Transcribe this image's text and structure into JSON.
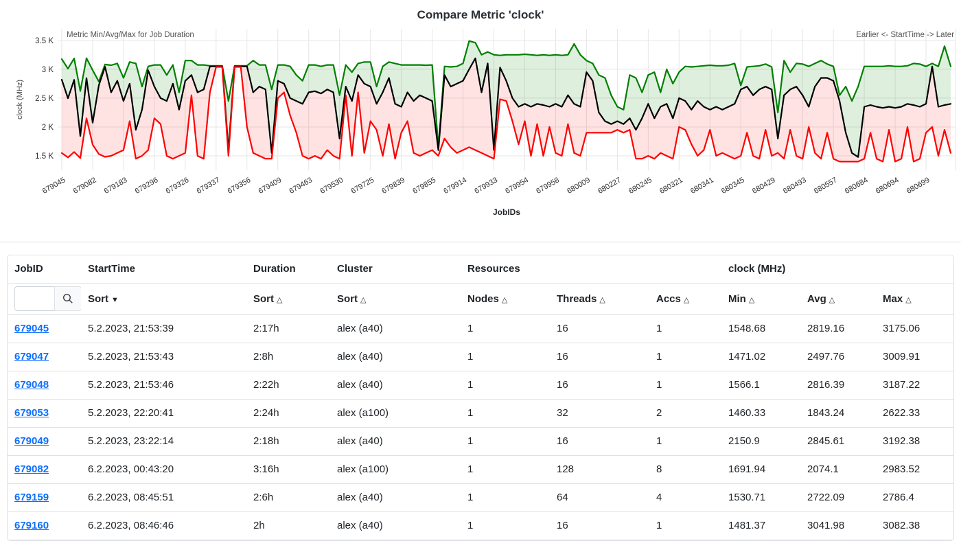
{
  "chart_data": {
    "type": "area",
    "title": "Compare Metric 'clock'",
    "annotations": {
      "top_left": "Metric Min/Avg/Max for Job Duration",
      "top_right": "Earlier <- StartTime -> Later"
    },
    "xlabel": "JobIDs",
    "ylabel": "clock (MHz)",
    "grid": true,
    "legend": "none",
    "ylim": [
      1250,
      3700
    ],
    "yticks": [
      {
        "value": 1500,
        "label": "1.5 K"
      },
      {
        "value": 2000,
        "label": "2 K"
      },
      {
        "value": 2500,
        "label": "2.5 K"
      },
      {
        "value": 3000,
        "label": "3 K"
      },
      {
        "value": 3500,
        "label": "3.5 K"
      }
    ],
    "tick_every": 5,
    "x_tick_labels": [
      "679045",
      "679082",
      "679183",
      "679296",
      "679326",
      "679337",
      "679356",
      "679409",
      "679463",
      "679530",
      "679725",
      "679839",
      "679855",
      "679914",
      "679933",
      "679954",
      "679958",
      "680009",
      "680227",
      "680245",
      "680321",
      "680341",
      "680345",
      "680429",
      "680493",
      "680557",
      "680684",
      "680694",
      "680699"
    ],
    "series": [
      {
        "name": "max",
        "color": "#008000",
        "fill_color": "rgba(0,128,0,0.13)",
        "values": [
          3175.06,
          3009.91,
          3187.22,
          2622.33,
          3192.38,
          2983.52,
          2786.4,
          3082.38,
          3070,
          3100,
          2850,
          3125,
          3100,
          2700,
          3050,
          3075,
          3075,
          2900,
          3075,
          2600,
          3150,
          3150,
          3075,
          3075,
          3060,
          3060,
          3060,
          2450,
          3060,
          3060,
          3060,
          3150,
          3075,
          3075,
          2650,
          3075,
          3075,
          3050,
          2900,
          2800,
          3075,
          3075,
          3050,
          3075,
          3075,
          2550,
          3075,
          2950,
          3100,
          3125,
          3125,
          2700,
          3050,
          3125,
          3100,
          3075,
          3075,
          3075,
          3075,
          3070,
          3075,
          1650,
          3050,
          3040,
          3050,
          3100,
          3490,
          3460,
          3250,
          3300,
          3250,
          3240,
          3250,
          3250,
          3250,
          3260,
          3250,
          3240,
          3250,
          3240,
          3250,
          3240,
          3250,
          3440,
          3250,
          3150,
          3100,
          2900,
          2850,
          2550,
          2350,
          2300,
          2900,
          2850,
          2600,
          2900,
          2950,
          2600,
          3000,
          2750,
          2950,
          3050,
          3040,
          3050,
          3060,
          3070,
          3060,
          3060,
          3070,
          3100,
          2720,
          3040,
          3050,
          3060,
          3090,
          3040,
          2250,
          3150,
          2950,
          3100,
          3090,
          3050,
          3100,
          3150,
          3090,
          3050,
          2550,
          2700,
          2450,
          2700,
          3050,
          3050,
          3050,
          3050,
          3060,
          3050,
          3050,
          3060,
          3100,
          3090,
          3050,
          3100,
          3050,
          3400,
          3050
        ]
      },
      {
        "name": "avg",
        "color": "#000000",
        "values": [
          2819.16,
          2497.76,
          2816.39,
          1843.24,
          2845.61,
          2074.1,
          2722.09,
          3041.98,
          2600,
          2800,
          2450,
          2750,
          1950,
          2300,
          2980,
          2700,
          2500,
          2450,
          2750,
          2300,
          2800,
          2900,
          2600,
          2650,
          3050,
          3050,
          3050,
          1600,
          3050,
          3050,
          3050,
          2600,
          2700,
          2650,
          1550,
          2800,
          2750,
          2500,
          2450,
          2400,
          2600,
          2620,
          2580,
          2650,
          2600,
          1800,
          2700,
          2450,
          2900,
          2750,
          2700,
          2400,
          2600,
          2850,
          2400,
          2350,
          2600,
          2450,
          2550,
          2500,
          2450,
          1600,
          2900,
          2700,
          2750,
          2800,
          3000,
          3190,
          2600,
          3100,
          1600,
          3030,
          2800,
          2500,
          2350,
          2400,
          2350,
          2400,
          2380,
          2350,
          2400,
          2350,
          2550,
          2400,
          2350,
          2950,
          2800,
          2250,
          2100,
          2050,
          2100,
          2050,
          2150,
          1950,
          2150,
          2400,
          2150,
          2350,
          2400,
          2150,
          2500,
          2450,
          2300,
          2450,
          2350,
          2300,
          2350,
          2300,
          2350,
          2400,
          2650,
          2700,
          2550,
          2650,
          2700,
          2650,
          1800,
          2550,
          2650,
          2700,
          2550,
          2350,
          2700,
          2850,
          2850,
          2800,
          2450,
          1900,
          1550,
          1480,
          2350,
          2380,
          2350,
          2330,
          2350,
          2330,
          2350,
          2400,
          2380,
          2350,
          2400,
          3050,
          2350,
          2380,
          2400
        ]
      },
      {
        "name": "min",
        "color": "#ff0000",
        "fill_color": "rgba(255,0,0,0.11)",
        "values": [
          1548.68,
          1471.02,
          1566.1,
          1460.33,
          2150.9,
          1691.94,
          1530.71,
          1481.37,
          1500,
          1550,
          1600,
          2100,
          1450,
          1500,
          1600,
          2150,
          2050,
          1500,
          1450,
          1500,
          1550,
          2550,
          1500,
          1450,
          2600,
          3040,
          3040,
          1500,
          3040,
          3040,
          2000,
          1550,
          1500,
          1450,
          1450,
          2500,
          2600,
          2200,
          1900,
          1500,
          1450,
          1500,
          1450,
          1600,
          1500,
          1450,
          2550,
          1500,
          2600,
          1550,
          2100,
          1950,
          1500,
          2050,
          1450,
          1900,
          2100,
          1550,
          1500,
          1550,
          1600,
          1500,
          1800,
          1650,
          1550,
          1600,
          1650,
          1600,
          1550,
          1500,
          1450,
          2480,
          2450,
          2100,
          1700,
          2100,
          1500,
          2050,
          1500,
          2000,
          1550,
          1500,
          2050,
          1550,
          1500,
          1900,
          1900,
          1900,
          1900,
          1900,
          1950,
          1900,
          1950,
          1450,
          1450,
          1500,
          1450,
          1550,
          1500,
          1450,
          2000,
          1950,
          1700,
          1500,
          1600,
          1950,
          1500,
          1550,
          1500,
          1450,
          1500,
          1900,
          1500,
          1450,
          1950,
          1500,
          1550,
          1450,
          1950,
          1500,
          1450,
          2000,
          1550,
          1450,
          1900,
          1450,
          1400,
          1400,
          1400,
          1400,
          1450,
          1900,
          1450,
          1400,
          1950,
          1400,
          1450,
          2000,
          1400,
          1450,
          1900,
          2000,
          1500,
          1950,
          1550
        ]
      }
    ]
  },
  "table": {
    "groups": [
      "JobID",
      "StartTime",
      "Duration",
      "Cluster",
      "Resources",
      "clock (MHz)"
    ],
    "search": {
      "value": "",
      "placeholder": ""
    },
    "sub": [
      {
        "label": "Sort",
        "glyph": "▼"
      },
      {
        "label": "Sort",
        "glyph": "△"
      },
      {
        "label": "Sort",
        "glyph": "△"
      },
      {
        "label": "Nodes",
        "glyph": "△"
      },
      {
        "label": "Threads",
        "glyph": "△"
      },
      {
        "label": "Accs",
        "glyph": "△"
      },
      {
        "label": "Min",
        "glyph": "△"
      },
      {
        "label": "Avg",
        "glyph": "△"
      },
      {
        "label": "Max",
        "glyph": "△"
      }
    ],
    "rows": [
      {
        "jobid": "679045",
        "starttime": "5.2.2023, 21:53:39",
        "duration": "2:17h",
        "cluster": "alex (a40)",
        "nodes": "1",
        "threads": "16",
        "accs": "1",
        "min": "1548.68",
        "avg": "2819.16",
        "max": "3175.06"
      },
      {
        "jobid": "679047",
        "starttime": "5.2.2023, 21:53:43",
        "duration": "2:8h",
        "cluster": "alex (a40)",
        "nodes": "1",
        "threads": "16",
        "accs": "1",
        "min": "1471.02",
        "avg": "2497.76",
        "max": "3009.91"
      },
      {
        "jobid": "679048",
        "starttime": "5.2.2023, 21:53:46",
        "duration": "2:22h",
        "cluster": "alex (a40)",
        "nodes": "1",
        "threads": "16",
        "accs": "1",
        "min": "1566.1",
        "avg": "2816.39",
        "max": "3187.22"
      },
      {
        "jobid": "679053",
        "starttime": "5.2.2023, 22:20:41",
        "duration": "2:24h",
        "cluster": "alex (a100)",
        "nodes": "1",
        "threads": "32",
        "accs": "2",
        "min": "1460.33",
        "avg": "1843.24",
        "max": "2622.33"
      },
      {
        "jobid": "679049",
        "starttime": "5.2.2023, 23:22:14",
        "duration": "2:18h",
        "cluster": "alex (a40)",
        "nodes": "1",
        "threads": "16",
        "accs": "1",
        "min": "2150.9",
        "avg": "2845.61",
        "max": "3192.38"
      },
      {
        "jobid": "679082",
        "starttime": "6.2.2023, 00:43:20",
        "duration": "3:16h",
        "cluster": "alex (a100)",
        "nodes": "1",
        "threads": "128",
        "accs": "8",
        "min": "1691.94",
        "avg": "2074.1",
        "max": "2983.52"
      },
      {
        "jobid": "679159",
        "starttime": "6.2.2023, 08:45:51",
        "duration": "2:6h",
        "cluster": "alex (a40)",
        "nodes": "1",
        "threads": "64",
        "accs": "4",
        "min": "1530.71",
        "avg": "2722.09",
        "max": "2786.4"
      },
      {
        "jobid": "679160",
        "starttime": "6.2.2023, 08:46:46",
        "duration": "2h",
        "cluster": "alex (a40)",
        "nodes": "1",
        "threads": "16",
        "accs": "1",
        "min": "1481.37",
        "avg": "3041.98",
        "max": "3082.38"
      }
    ]
  }
}
